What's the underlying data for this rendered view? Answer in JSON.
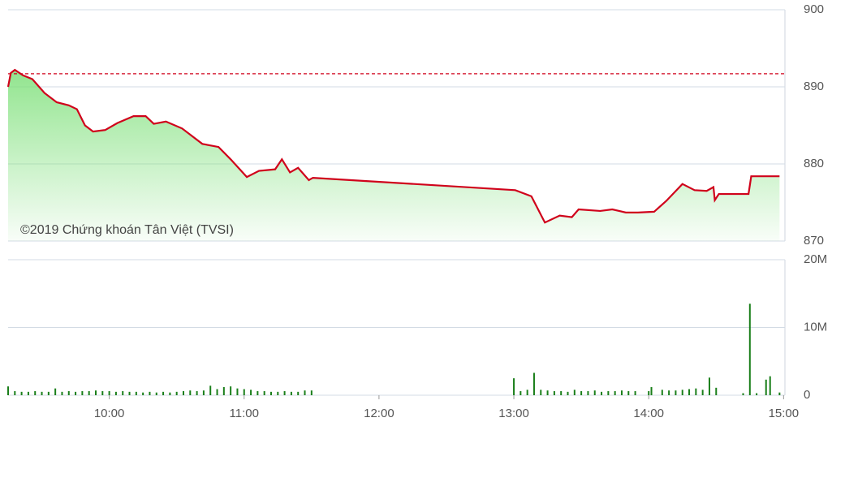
{
  "chart_data": [
    {
      "type": "line",
      "color": "#d0021b",
      "fill_color": "#7ee07a",
      "annotation": "©2019 Chứng khoán Tân Việt (TVSI)",
      "reference_value": 891.7,
      "reference_color": "#d0021b",
      "xlim": [
        9.25,
        15.01
      ],
      "ylim": [
        870,
        900
      ],
      "yticks": [
        870,
        880,
        890,
        900
      ],
      "grid": true,
      "x": [
        9.25,
        9.27,
        9.3,
        9.36,
        9.43,
        9.52,
        9.61,
        9.7,
        9.76,
        9.82,
        9.88,
        9.97,
        10.06,
        10.18,
        10.27,
        10.33,
        10.42,
        10.54,
        10.69,
        10.81,
        10.9,
        11.02,
        11.11,
        11.23,
        11.28,
        11.34,
        11.4,
        11.48,
        11.51,
        13.01,
        13.13,
        13.23,
        13.34,
        13.43,
        13.48,
        13.64,
        13.73,
        13.83,
        13.92,
        14.04,
        14.13,
        14.25,
        14.34,
        14.43,
        14.48,
        14.49,
        14.52,
        14.74,
        14.76,
        14.97
      ],
      "series": [
        {
          "color": "#d0021b",
          "values": [
            890,
            891.8,
            892.2,
            891.5,
            891,
            889.2,
            888,
            887.6,
            887.1,
            885,
            884.2,
            884.4,
            885.3,
            886.2,
            886.2,
            885.2,
            885.5,
            884.6,
            882.6,
            882.2,
            880.6,
            878.3,
            879.1,
            879.3,
            880.6,
            878.9,
            879.5,
            877.9,
            878.2,
            876.6,
            875.8,
            872.4,
            873.3,
            873.1,
            874.1,
            873.9,
            874.1,
            873.7,
            873.7,
            873.8,
            875.2,
            877.4,
            876.6,
            876.5,
            877,
            875.3,
            876.1,
            876.1,
            878.4,
            878.4
          ]
        }
      ]
    },
    {
      "type": "bar",
      "color": "#1a7f1a",
      "xlim": [
        9.25,
        15.01
      ],
      "ylim": [
        0,
        20000000
      ],
      "yticks": [
        0,
        {
          "value": 10000000,
          "label": "10M"
        },
        {
          "value": 20000000,
          "label": "20M"
        }
      ],
      "grid": true,
      "xticks": [
        {
          "value": 10,
          "label": "10:00"
        },
        {
          "value": 11,
          "label": "11:00"
        },
        {
          "value": 12,
          "label": "12:00"
        },
        {
          "value": 13,
          "label": "13:00"
        },
        {
          "value": 14,
          "label": "14:00"
        },
        {
          "value": 15,
          "label": "15:00"
        }
      ],
      "x": [
        9.25,
        9.3,
        9.35,
        9.4,
        9.45,
        9.5,
        9.55,
        9.6,
        9.65,
        9.7,
        9.75,
        9.8,
        9.85,
        9.9,
        9.95,
        10.0,
        10.05,
        10.1,
        10.15,
        10.2,
        10.25,
        10.3,
        10.35,
        10.4,
        10.45,
        10.5,
        10.55,
        10.6,
        10.65,
        10.7,
        10.75,
        10.8,
        10.85,
        10.9,
        10.95,
        11.0,
        11.05,
        11.1,
        11.15,
        11.2,
        11.25,
        11.3,
        11.35,
        11.4,
        11.45,
        11.5,
        13.0,
        13.05,
        13.1,
        13.15,
        13.2,
        13.25,
        13.3,
        13.35,
        13.4,
        13.45,
        13.5,
        13.55,
        13.6,
        13.65,
        13.7,
        13.75,
        13.8,
        13.85,
        13.9,
        14.0,
        14.02,
        14.1,
        14.15,
        14.2,
        14.25,
        14.3,
        14.35,
        14.4,
        14.45,
        14.5,
        14.7,
        14.75,
        14.8,
        14.87,
        14.9,
        14.97
      ],
      "values": [
        1300000,
        600000,
        500000,
        500000,
        600000,
        500000,
        500000,
        1000000,
        500000,
        600000,
        500000,
        600000,
        600000,
        700000,
        600000,
        600000,
        500000,
        600000,
        500000,
        500000,
        400000,
        500000,
        400000,
        500000,
        400000,
        500000,
        600000,
        700000,
        600000,
        700000,
        1400000,
        900000,
        1200000,
        1300000,
        1000000,
        900000,
        800000,
        600000,
        600000,
        500000,
        500000,
        600000,
        500000,
        500000,
        700000,
        700000,
        2500000,
        600000,
        800000,
        3300000,
        800000,
        700000,
        600000,
        600000,
        500000,
        800000,
        600000,
        600000,
        700000,
        500000,
        600000,
        600000,
        700000,
        600000,
        600000,
        600000,
        1200000,
        800000,
        700000,
        700000,
        800000,
        900000,
        1000000,
        800000,
        2600000,
        1100000,
        300000,
        13500000,
        300000,
        2300000,
        2800000,
        400000
      ]
    }
  ]
}
